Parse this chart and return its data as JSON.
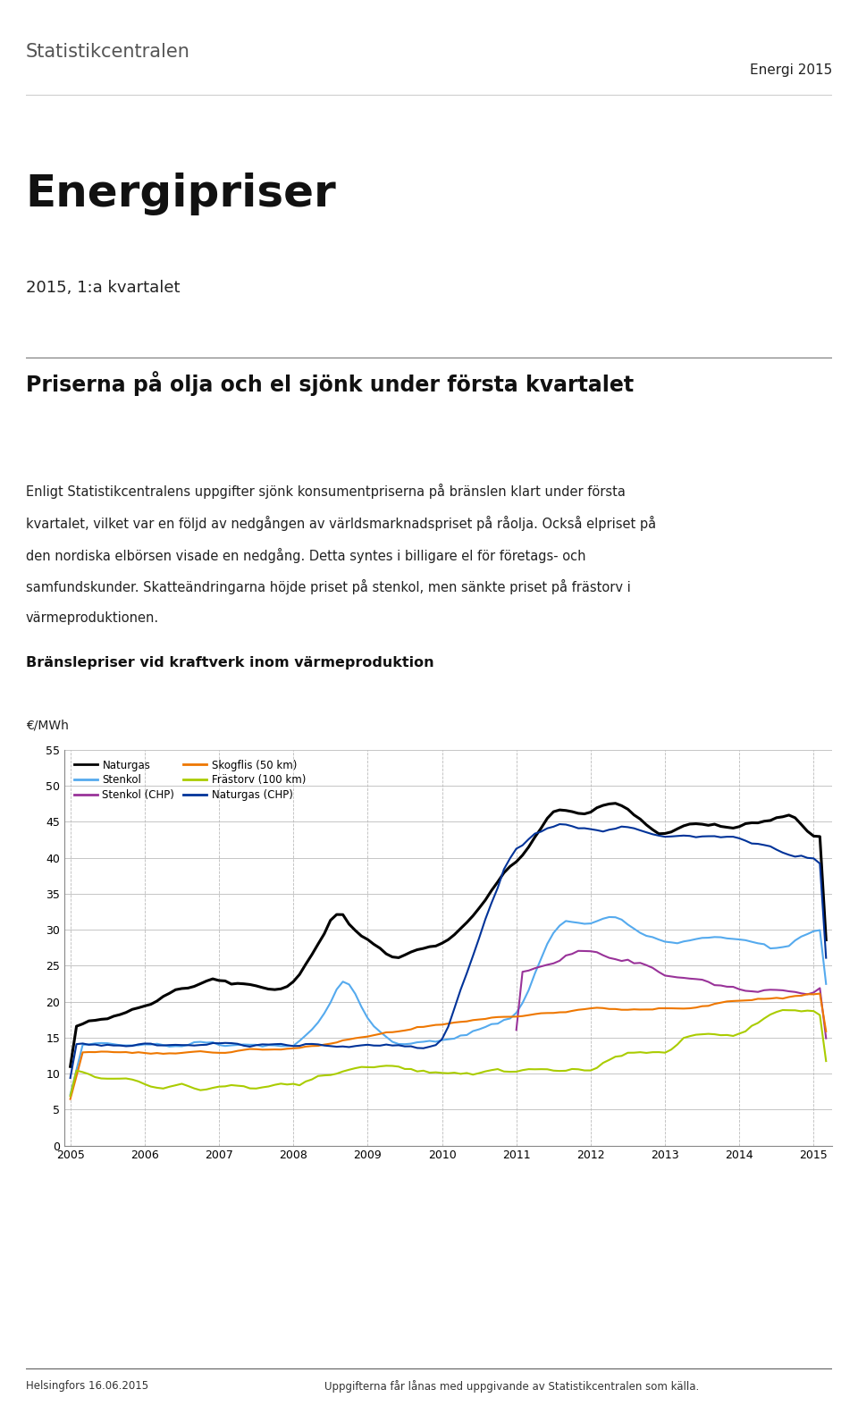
{
  "title_energi": "Energi 2015",
  "main_title": "Energipriser",
  "subtitle": "2015, 1:a kvartalet",
  "section_title": "Priserna på olja och el sjönk under första kvartalet",
  "body_text_lines": [
    "Enligt Statistikcentralens uppgifter sjönk konsumentpriserna på bränslen klart under första",
    "kvartalet, vilket var en följd av nedgången av världsmarknadspriset på råolja. Också elpriset på",
    "den nordiska elbörsen visade en nedgång. Detta syntes i billigare el för företags- och",
    "samfundskunder. Skatteändringarna höjde priset på stenkol, men sänkte priset på frästorv i",
    "värmeproduktionen."
  ],
  "chart_title": "Bränslepriser vid kraftverk inom värmeproduktion",
  "ylabel": "€/MWh",
  "ylim": [
    0,
    55
  ],
  "yticks": [
    0,
    5,
    10,
    15,
    20,
    25,
    30,
    35,
    40,
    45,
    50,
    55
  ],
  "footer_left": "Helsingfors 16.06.2015",
  "footer_right": "Uppgifterna får lånas med uppgivande av Statistikcentralen som källa.",
  "legend_entries": [
    {
      "label": "Naturgas",
      "color": "#000000"
    },
    {
      "label": "Stenkol",
      "color": "#55aaee"
    },
    {
      "label": "Stenkol (CHP)",
      "color": "#993399"
    },
    {
      "label": "Skogflis (50 km)",
      "color": "#ee7700"
    },
    {
      "label": "Frästorv (100 km)",
      "color": "#aacc00"
    },
    {
      "label": "Naturgas (CHP)",
      "color": "#003399"
    }
  ],
  "bg_color": "#ffffff",
  "text_color": "#222222",
  "grid_color": "#bbbbbb",
  "header_line_color": "#cccccc",
  "section_line_color": "#555555"
}
